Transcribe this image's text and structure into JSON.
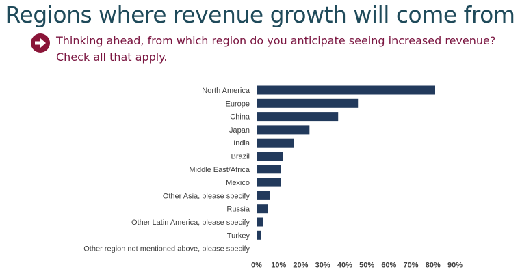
{
  "page": {
    "title": "Regions where revenue growth will come from",
    "question": "Thinking ahead, from which region do you anticipate seeing increased revenue? Check all that apply."
  },
  "colors": {
    "title": "#1f4a5a",
    "question": "#7a1540",
    "arrow": "#8a1538",
    "bar": "#223a5c"
  },
  "icons": {
    "question_marker": "arrow-right-circle-icon"
  },
  "chart_data": {
    "type": "bar",
    "orientation": "horizontal",
    "title": "",
    "xlabel": "",
    "ylabel": "",
    "categories": [
      "North America",
      "Europe",
      "China",
      "Japan",
      "India",
      "Brazil",
      "Middle East/Africa",
      "Mexico",
      "Other Asia, please specify",
      "Russia",
      "Other Latin America, please specify",
      "Turkey",
      "Other region not mentioned above, please specify"
    ],
    "values": [
      81,
      46,
      37,
      24,
      17,
      12,
      11,
      11,
      6,
      5,
      3,
      2,
      0
    ],
    "xlim": [
      0,
      90
    ],
    "xticks": [
      0,
      10,
      20,
      30,
      40,
      50,
      60,
      70,
      80,
      90
    ],
    "tick_format": "percent",
    "grid": false
  }
}
